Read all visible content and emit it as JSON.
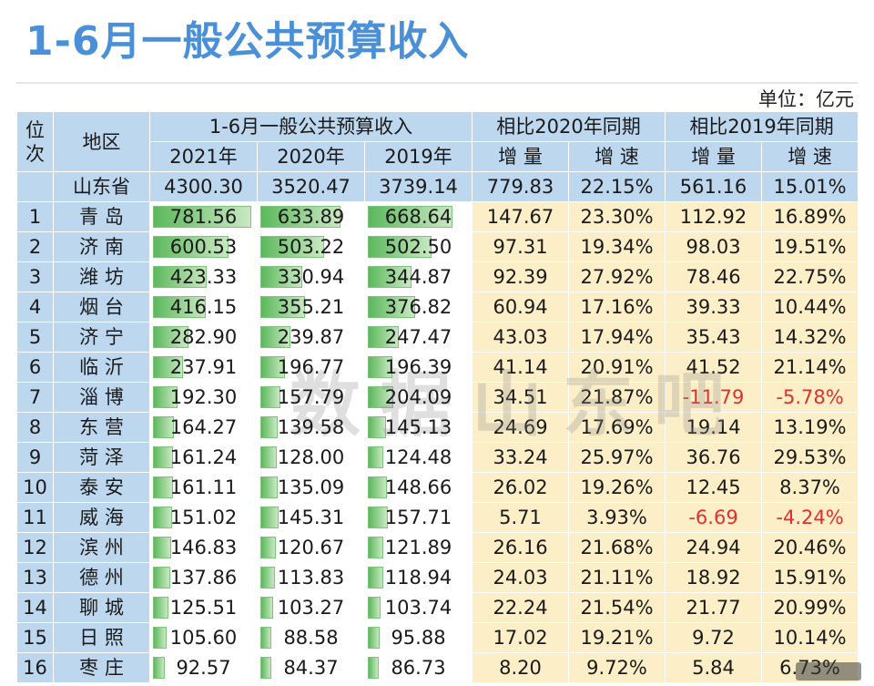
{
  "title": "1-6月一般公共预算收入",
  "unit": "单位：亿元",
  "watermark": "数据山东吧",
  "header": {
    "rank": "位次",
    "region": "地区",
    "group_income": "1-6月一般公共预算收入",
    "group_2020": "相比2020年同期",
    "group_2019": "相比2019年同期",
    "y2021": "2021年",
    "y2020": "2020年",
    "y2019": "2019年",
    "inc": "增 量",
    "rate": "增 速"
  },
  "province": {
    "name": "山东省",
    "v2021": "4300.30",
    "v2020": "3520.47",
    "v2019": "3739.14",
    "inc20": "779.83",
    "rate20": "22.15%",
    "inc19": "561.16",
    "rate19": "15.01%"
  },
  "bar_max": 800,
  "negative_color": "#e03030",
  "rows": [
    {
      "rank": "1",
      "region": "青 岛",
      "v2021": "781.56",
      "v2020": "633.89",
      "v2019": "668.64",
      "inc20": "147.67",
      "rate20": "23.30%",
      "inc19": "112.92",
      "rate19": "16.89%"
    },
    {
      "rank": "2",
      "region": "济 南",
      "v2021": "600.53",
      "v2020": "503.22",
      "v2019": "502.50",
      "inc20": "97.31",
      "rate20": "19.34%",
      "inc19": "98.03",
      "rate19": "19.51%"
    },
    {
      "rank": "3",
      "region": "潍 坊",
      "v2021": "423.33",
      "v2020": "330.94",
      "v2019": "344.87",
      "inc20": "92.39",
      "rate20": "27.92%",
      "inc19": "78.46",
      "rate19": "22.75%"
    },
    {
      "rank": "4",
      "region": "烟 台",
      "v2021": "416.15",
      "v2020": "355.21",
      "v2019": "376.82",
      "inc20": "60.94",
      "rate20": "17.16%",
      "inc19": "39.33",
      "rate19": "10.44%"
    },
    {
      "rank": "5",
      "region": "济 宁",
      "v2021": "282.90",
      "v2020": "239.87",
      "v2019": "247.47",
      "inc20": "43.03",
      "rate20": "17.94%",
      "inc19": "35.43",
      "rate19": "14.32%"
    },
    {
      "rank": "6",
      "region": "临 沂",
      "v2021": "237.91",
      "v2020": "196.77",
      "v2019": "196.39",
      "inc20": "41.14",
      "rate20": "20.91%",
      "inc19": "41.52",
      "rate19": "21.14%"
    },
    {
      "rank": "7",
      "region": "淄 博",
      "v2021": "192.30",
      "v2020": "157.79",
      "v2019": "204.09",
      "inc20": "34.51",
      "rate20": "21.87%",
      "inc19": "-11.79",
      "rate19": "-5.78%"
    },
    {
      "rank": "8",
      "region": "东 营",
      "v2021": "164.27",
      "v2020": "139.58",
      "v2019": "145.13",
      "inc20": "24.69",
      "rate20": "17.69%",
      "inc19": "19.14",
      "rate19": "13.19%"
    },
    {
      "rank": "9",
      "region": "菏 泽",
      "v2021": "161.24",
      "v2020": "128.00",
      "v2019": "124.48",
      "inc20": "33.24",
      "rate20": "25.97%",
      "inc19": "36.76",
      "rate19": "29.53%"
    },
    {
      "rank": "10",
      "region": "泰 安",
      "v2021": "161.11",
      "v2020": "135.09",
      "v2019": "148.66",
      "inc20": "26.02",
      "rate20": "19.26%",
      "inc19": "12.45",
      "rate19": "8.37%"
    },
    {
      "rank": "11",
      "region": "威 海",
      "v2021": "151.02",
      "v2020": "145.31",
      "v2019": "157.71",
      "inc20": "5.71",
      "rate20": "3.93%",
      "inc19": "-6.69",
      "rate19": "-4.24%"
    },
    {
      "rank": "12",
      "region": "滨 州",
      "v2021": "146.83",
      "v2020": "120.67",
      "v2019": "121.89",
      "inc20": "26.16",
      "rate20": "21.68%",
      "inc19": "24.94",
      "rate19": "20.46%"
    },
    {
      "rank": "13",
      "region": "德 州",
      "v2021": "137.86",
      "v2020": "113.83",
      "v2019": "118.94",
      "inc20": "24.03",
      "rate20": "21.11%",
      "inc19": "18.92",
      "rate19": "15.91%"
    },
    {
      "rank": "14",
      "region": "聊 城",
      "v2021": "125.51",
      "v2020": "103.27",
      "v2019": "103.74",
      "inc20": "22.24",
      "rate20": "21.54%",
      "inc19": "21.77",
      "rate19": "20.99%"
    },
    {
      "rank": "15",
      "region": "日 照",
      "v2021": "105.60",
      "v2020": "88.58",
      "v2019": "95.88",
      "inc20": "17.02",
      "rate20": "19.21%",
      "inc19": "9.72",
      "rate19": "10.14%"
    },
    {
      "rank": "16",
      "region": "枣 庄",
      "v2021": "92.57",
      "v2020": "84.37",
      "v2019": "86.73",
      "inc20": "8.20",
      "rate20": "9.72%",
      "inc19": "5.84",
      "rate19": "6.73%"
    }
  ]
}
